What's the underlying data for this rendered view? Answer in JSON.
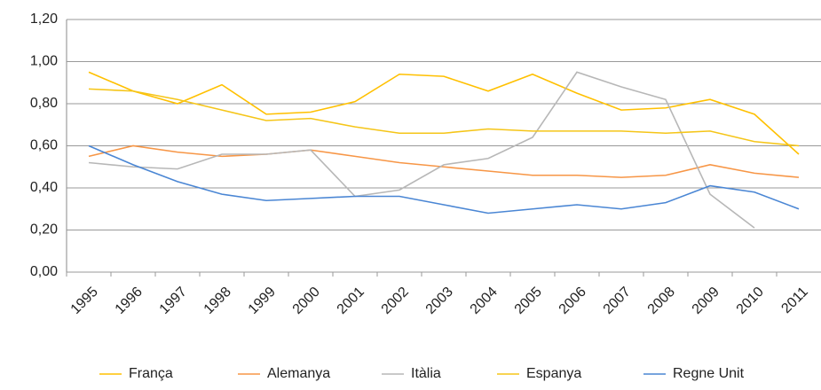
{
  "chart_data": {
    "type": "line",
    "categories": [
      "1995",
      "1996",
      "1997",
      "1998",
      "1999",
      "2000",
      "2001",
      "2002",
      "2003",
      "2004",
      "2005",
      "2006",
      "2007",
      "2008",
      "2009",
      "2010",
      "2011"
    ],
    "series": [
      {
        "name": "França",
        "color": "#ffc000",
        "values": [
          0.95,
          0.86,
          0.8,
          0.89,
          0.75,
          0.76,
          0.81,
          0.94,
          0.93,
          0.86,
          0.94,
          0.85,
          0.77,
          0.78,
          0.82,
          0.75,
          0.56
        ]
      },
      {
        "name": "Alemanya",
        "color": "#f79646",
        "values": [
          0.55,
          0.6,
          0.57,
          0.55,
          0.56,
          0.58,
          0.55,
          0.52,
          0.5,
          0.48,
          0.46,
          0.46,
          0.45,
          0.46,
          0.51,
          0.47,
          0.45
        ]
      },
      {
        "name": "Itàlia",
        "color": "#b7b7b7",
        "values": [
          0.52,
          0.5,
          0.49,
          0.56,
          0.56,
          0.58,
          0.36,
          0.39,
          0.51,
          0.54,
          0.64,
          0.95,
          0.88,
          0.82,
          0.37,
          0.21,
          null
        ]
      },
      {
        "name": "Espanya",
        "color": "#f5c518",
        "values": [
          0.87,
          0.86,
          0.82,
          0.77,
          0.72,
          0.73,
          0.69,
          0.66,
          0.66,
          0.68,
          0.67,
          0.67,
          0.67,
          0.66,
          0.67,
          0.62,
          0.6
        ]
      },
      {
        "name": "Regne Unit",
        "color": "#4a86d4",
        "values": [
          0.6,
          0.51,
          0.43,
          0.37,
          0.34,
          0.35,
          0.36,
          0.36,
          0.32,
          0.28,
          0.3,
          0.32,
          0.3,
          0.33,
          0.41,
          0.38,
          0.3
        ]
      }
    ],
    "ylim": [
      0,
      1.2
    ],
    "yticks": [
      {
        "value": 0,
        "label": "0,00"
      },
      {
        "value": 0.2,
        "label": "0,20"
      },
      {
        "value": 0.4,
        "label": "0,40"
      },
      {
        "value": 0.6,
        "label": "0,60"
      },
      {
        "value": 0.8,
        "label": "0,80"
      },
      {
        "value": 1,
        "label": "1,00"
      },
      {
        "value": 1.2,
        "label": "1,20"
      }
    ],
    "grid": true
  }
}
